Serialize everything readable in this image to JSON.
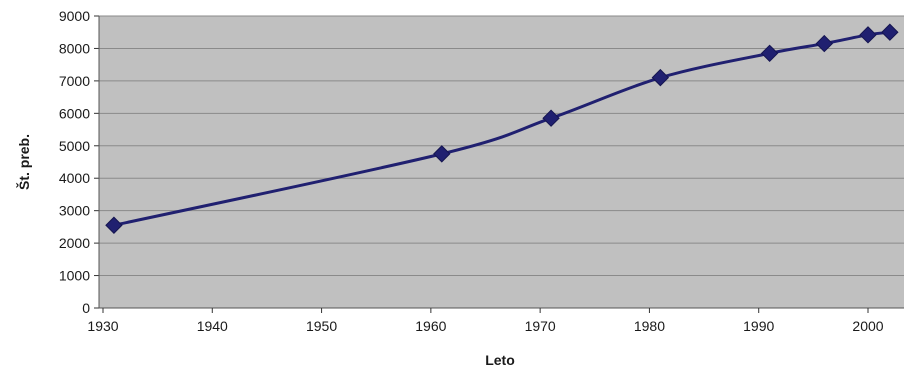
{
  "chart_data": {
    "type": "line",
    "title": "",
    "xlabel": "Leto",
    "ylabel": "Št. preb.",
    "xlim": [
      1930,
      2003
    ],
    "ylim": [
      0,
      9000
    ],
    "x_ticks": [
      1930,
      1940,
      1950,
      1960,
      1970,
      1980,
      1990,
      2000
    ],
    "y_ticks": [
      0,
      1000,
      2000,
      3000,
      4000,
      5000,
      6000,
      7000,
      8000,
      9000
    ],
    "grid": true,
    "legend": "none",
    "plot_background": "#c0c0c0",
    "series_color": "#202070",
    "series": [
      {
        "x": [
          1931,
          1961,
          1971,
          1981,
          1991,
          1996,
          2000,
          2002
        ],
        "values": [
          2550,
          4750,
          5850,
          7100,
          7850,
          8150,
          8420,
          8500
        ]
      }
    ]
  }
}
